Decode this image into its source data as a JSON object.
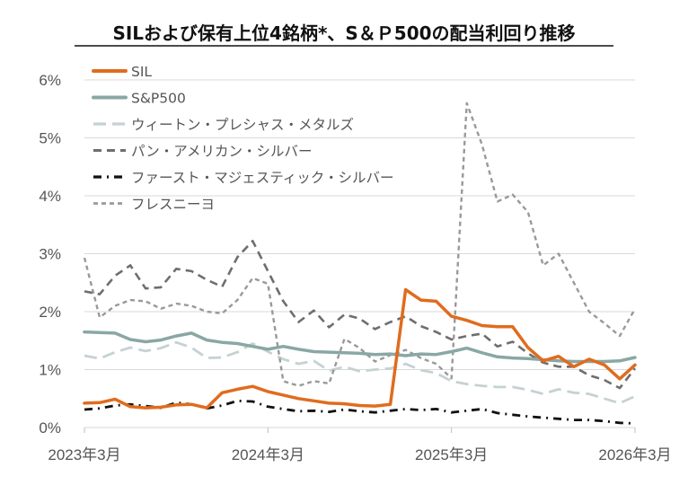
{
  "chart_data": {
    "type": "line",
    "title": "SILおよび保有上位4銘柄*、S＆Ｐ500の配当利回り推移",
    "xlabel": "",
    "ylabel": "",
    "y_ticks": [
      "0%",
      "1%",
      "2%",
      "3%",
      "4%",
      "5%",
      "6%"
    ],
    "ylim": [
      0,
      6
    ],
    "x_ticks": [
      {
        "label": "2023年3月",
        "x": 0
      },
      {
        "label": "2024年3月",
        "x": 12
      },
      {
        "label": "2025年3月",
        "x": 24
      },
      {
        "label": "2026年3月",
        "x": 36
      }
    ],
    "xlim": [
      0,
      36
    ],
    "grid": true,
    "legend_position": "top-left",
    "series": [
      {
        "name": "SIL",
        "color": "#e06c1e",
        "style": "solid",
        "x": [
          0,
          1,
          2,
          3,
          4,
          5,
          6,
          7,
          8,
          9,
          10,
          11,
          12,
          13,
          14,
          15,
          16,
          17,
          18,
          19,
          20,
          21,
          22,
          23,
          24,
          25,
          26,
          27,
          28,
          29,
          30,
          31,
          32,
          33,
          34,
          35,
          36
        ],
        "values": [
          0.42,
          0.43,
          0.49,
          0.36,
          0.34,
          0.35,
          0.39,
          0.4,
          0.34,
          0.6,
          0.66,
          0.71,
          0.62,
          0.56,
          0.5,
          0.46,
          0.42,
          0.41,
          0.38,
          0.37,
          0.4,
          2.38,
          2.2,
          2.18,
          1.92,
          1.85,
          1.76,
          1.74,
          1.74,
          1.38,
          1.15,
          1.23,
          1.05,
          1.18,
          1.08,
          0.84,
          1.08
        ]
      },
      {
        "name": "S&P500",
        "color": "#89a7a5",
        "style": "solid",
        "x": [
          0,
          1,
          2,
          3,
          4,
          5,
          6,
          7,
          8,
          9,
          10,
          11,
          12,
          13,
          14,
          15,
          16,
          17,
          18,
          19,
          20,
          21,
          22,
          23,
          24,
          25,
          26,
          27,
          28,
          29,
          30,
          31,
          32,
          33,
          34,
          35,
          36
        ],
        "values": [
          1.65,
          1.64,
          1.63,
          1.52,
          1.48,
          1.51,
          1.58,
          1.63,
          1.51,
          1.47,
          1.45,
          1.4,
          1.35,
          1.4,
          1.35,
          1.31,
          1.3,
          1.29,
          1.28,
          1.26,
          1.27,
          1.24,
          1.27,
          1.26,
          1.31,
          1.37,
          1.29,
          1.22,
          1.2,
          1.19,
          1.17,
          1.15,
          1.14,
          1.14,
          1.14,
          1.15,
          1.21
        ]
      },
      {
        "name": "ウィートン・プレシャス・メタルズ",
        "color": "#c5d2d4",
        "style": "longdash",
        "x": [
          0,
          1,
          2,
          3,
          4,
          5,
          6,
          7,
          8,
          9,
          10,
          11,
          12,
          13,
          14,
          15,
          16,
          17,
          18,
          19,
          20,
          21,
          22,
          23,
          24,
          25,
          26,
          27,
          28,
          29,
          30,
          31,
          32,
          33,
          34,
          35,
          36
        ],
        "values": [
          1.24,
          1.19,
          1.3,
          1.38,
          1.32,
          1.37,
          1.47,
          1.38,
          1.2,
          1.21,
          1.3,
          1.45,
          1.31,
          1.18,
          1.1,
          1.15,
          0.98,
          1.05,
          0.97,
          1.0,
          1.02,
          1.1,
          0.99,
          0.94,
          0.8,
          0.75,
          0.72,
          0.7,
          0.7,
          0.65,
          0.58,
          0.66,
          0.6,
          0.58,
          0.5,
          0.42,
          0.54
        ]
      },
      {
        "name": "パン・アメリカン・シルバー",
        "color": "#6e6e6e",
        "style": "dash",
        "x": [
          0,
          1,
          2,
          3,
          4,
          5,
          6,
          7,
          8,
          9,
          10,
          11,
          12,
          13,
          14,
          15,
          16,
          17,
          18,
          19,
          20,
          21,
          22,
          23,
          24,
          25,
          26,
          27,
          28,
          29,
          30,
          31,
          32,
          33,
          34,
          35,
          36
        ],
        "values": [
          2.35,
          2.3,
          2.62,
          2.8,
          2.4,
          2.42,
          2.74,
          2.7,
          2.55,
          2.43,
          2.94,
          3.22,
          2.7,
          2.18,
          1.82,
          2.02,
          1.73,
          1.95,
          1.88,
          1.7,
          1.82,
          1.92,
          1.75,
          1.65,
          1.52,
          1.58,
          1.62,
          1.4,
          1.48,
          1.28,
          1.12,
          1.05,
          1.05,
          0.9,
          0.82,
          0.68,
          1.02
        ]
      },
      {
        "name": "ファースト・マジェスティック・シルバー",
        "color": "#111111",
        "style": "dashdot",
        "x": [
          0,
          1,
          2,
          3,
          4,
          5,
          6,
          7,
          8,
          9,
          10,
          11,
          12,
          13,
          14,
          15,
          16,
          17,
          18,
          19,
          20,
          21,
          22,
          23,
          24,
          25,
          26,
          27,
          28,
          29,
          30,
          31,
          32,
          33,
          34,
          35,
          36
        ],
        "values": [
          0.31,
          0.33,
          0.38,
          0.4,
          0.37,
          0.34,
          0.43,
          0.4,
          0.33,
          0.38,
          0.46,
          0.45,
          0.36,
          0.32,
          0.28,
          0.29,
          0.27,
          0.31,
          0.28,
          0.26,
          0.29,
          0.32,
          0.3,
          0.32,
          0.26,
          0.29,
          0.32,
          0.25,
          0.22,
          0.19,
          0.17,
          0.15,
          0.13,
          0.13,
          0.11,
          0.08,
          0.07
        ]
      },
      {
        "name": "フレスニーヨ",
        "color": "#999999",
        "style": "shortdash",
        "x": [
          0,
          1,
          2,
          3,
          4,
          5,
          6,
          7,
          8,
          9,
          10,
          11,
          12,
          13,
          14,
          15,
          16,
          17,
          18,
          19,
          20,
          21,
          22,
          23,
          24,
          25,
          26,
          27,
          28,
          29,
          30,
          31,
          32,
          33,
          34,
          35,
          36
        ],
        "values": [
          2.93,
          1.9,
          2.1,
          2.2,
          2.18,
          2.05,
          2.14,
          2.1,
          2.0,
          1.97,
          2.2,
          2.58,
          2.48,
          0.8,
          0.72,
          0.8,
          0.76,
          1.53,
          1.37,
          1.14,
          1.25,
          1.34,
          1.2,
          1.1,
          0.85,
          5.6,
          4.88,
          3.9,
          4.02,
          3.72,
          2.8,
          3.0,
          2.5,
          2.0,
          1.8,
          1.58,
          2.05
        ]
      }
    ]
  }
}
